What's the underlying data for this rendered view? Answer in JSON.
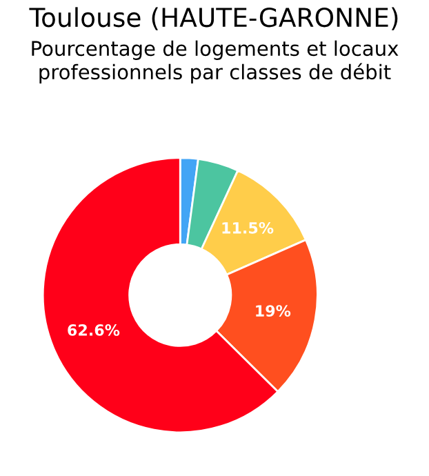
{
  "chart_data": {
    "type": "donut",
    "title": "Toulouse (HAUTE-GARONNE)",
    "subtitle": "Pourcentage de logements et locaux professionnels par classes de débit",
    "categories": [
      null,
      null,
      null,
      null,
      null
    ],
    "values": [
      2.1,
      4.8,
      11.5,
      19,
      62.6
    ],
    "colors": [
      "#42a5f5",
      "#4cc5a0",
      "#ffcd4a",
      "#ff4f1f",
      "#ff0019"
    ],
    "value_labels": [
      null,
      null,
      "11.5%",
      "19%",
      "62.6%"
    ]
  }
}
